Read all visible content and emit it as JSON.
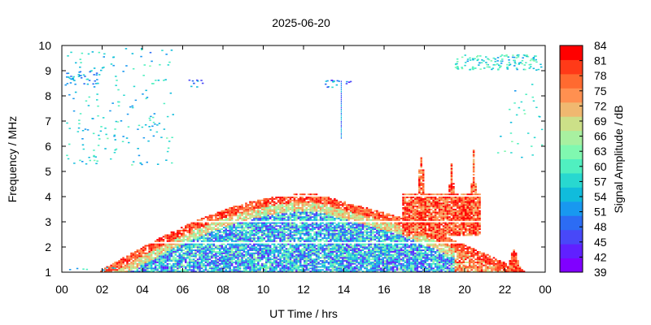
{
  "chart_data": {
    "type": "heatmap",
    "title": "2025-06-20",
    "xlabel": "UT Time / hrs",
    "ylabel": "Frequency / MHz",
    "xlim": [
      0,
      24
    ],
    "ylim": [
      1,
      10
    ],
    "x_ticks": [
      "00",
      "02",
      "04",
      "06",
      "08",
      "10",
      "12",
      "14",
      "16",
      "18",
      "20",
      "22",
      "00"
    ],
    "x_tick_values": [
      0,
      2,
      4,
      6,
      8,
      10,
      12,
      14,
      16,
      18,
      20,
      22,
      24
    ],
    "y_ticks": [
      "1",
      "2",
      "3",
      "4",
      "5",
      "6",
      "7",
      "8",
      "9",
      "10"
    ],
    "y_tick_values": [
      1,
      2,
      3,
      4,
      5,
      6,
      7,
      8,
      9,
      10
    ],
    "colorbar": {
      "label": "Signal Amplitude / dB",
      "range": [
        39,
        84
      ],
      "ticks": [
        "84",
        "81",
        "78",
        "75",
        "72",
        "69",
        "66",
        "63",
        "60",
        "57",
        "54",
        "51",
        "48",
        "45",
        "42",
        "39"
      ],
      "tick_values": [
        84,
        81,
        78,
        75,
        72,
        69,
        66,
        63,
        60,
        57,
        54,
        51,
        48,
        45,
        42,
        39
      ],
      "colors": [
        "#8000ff",
        "#6020ff",
        "#4848f8",
        "#2c6cf4",
        "#1898f0",
        "#10bcdc",
        "#28d8d0",
        "#50f0c0",
        "#80f8b0",
        "#a8f0a0",
        "#cce088",
        "#f0b870",
        "#ff9050",
        "#ff6a30",
        "#ff3a18",
        "#ff0000"
      ]
    },
    "features": [
      {
        "name": "daytime band",
        "x_range": [
          1.8,
          23.0
        ],
        "f_max_at_noon": 4.1,
        "f_min": 1.0
      },
      {
        "name": "evening spread F",
        "x_range": [
          16.8,
          20.8
        ],
        "f_max": 5.8
      },
      {
        "name": "sporadic vertical trace",
        "x": 13.9,
        "f_range": [
          6.3,
          8.6
        ]
      },
      {
        "name": "horizontal gaps",
        "f_values": [
          2.15,
          2.95,
          4.0
        ]
      }
    ]
  }
}
